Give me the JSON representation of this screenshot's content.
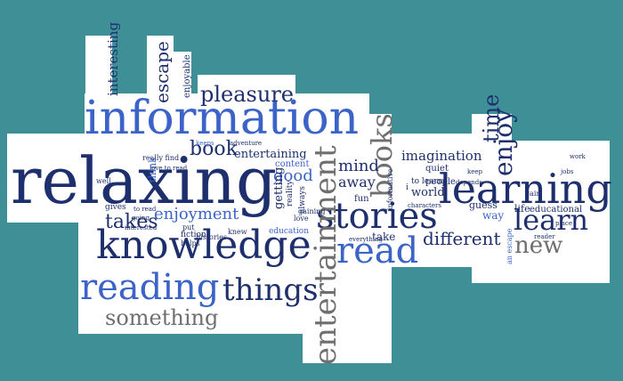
{
  "colors": {
    "background": "#3f8f97",
    "cloud": "#ffffff",
    "navy": "#1e2f6e",
    "blue": "#3c64c8",
    "light_blue": "#5a86dc",
    "gray": "#6f6f6f",
    "dark_gray": "#444444"
  },
  "words": [
    {
      "text": "relaxing",
      "color": "navy"
    },
    {
      "text": "information",
      "color": "blue"
    },
    {
      "text": "knowledge",
      "color": "navy"
    },
    {
      "text": "learning",
      "color": "navy"
    },
    {
      "text": "stories",
      "color": "navy"
    },
    {
      "text": "entertainment",
      "color": "gray"
    },
    {
      "text": "reading",
      "color": "blue"
    },
    {
      "text": "read",
      "color": "blue"
    },
    {
      "text": "things",
      "color": "navy"
    },
    {
      "text": "something",
      "color": "gray"
    },
    {
      "text": "books",
      "color": "gray"
    },
    {
      "text": "pleasure",
      "color": "navy"
    },
    {
      "text": "different",
      "color": "navy"
    },
    {
      "text": "learn",
      "color": "navy"
    },
    {
      "text": "new",
      "color": "gray"
    },
    {
      "text": "enjoy",
      "color": "navy"
    },
    {
      "text": "time",
      "color": "navy"
    },
    {
      "text": "book",
      "color": "navy"
    },
    {
      "text": "takes",
      "color": "navy"
    },
    {
      "text": "escape",
      "color": "navy"
    },
    {
      "text": "interesting",
      "color": "navy"
    },
    {
      "text": "enjoyment",
      "color": "blue"
    },
    {
      "text": "good",
      "color": "blue"
    },
    {
      "text": "mind",
      "color": "navy"
    },
    {
      "text": "away",
      "color": "navy"
    },
    {
      "text": "imagination",
      "color": "navy"
    },
    {
      "text": "entertaining",
      "color": "navy"
    },
    {
      "text": "getting",
      "color": "navy"
    },
    {
      "text": "enjoyable",
      "color": "navy"
    },
    {
      "text": "world",
      "color": "navy"
    },
    {
      "text": "quiet",
      "color": "navy"
    },
    {
      "text": "guess",
      "color": "navy"
    },
    {
      "text": "way",
      "color": "blue"
    },
    {
      "text": "life",
      "color": "navy"
    },
    {
      "text": "educational",
      "color": "navy"
    },
    {
      "text": "people",
      "color": "navy"
    },
    {
      "text": "take",
      "color": "navy"
    },
    {
      "text": "think",
      "color": "blue"
    },
    {
      "text": "fun",
      "color": "navy"
    },
    {
      "text": "reality",
      "color": "navy"
    },
    {
      "text": "always",
      "color": "navy"
    },
    {
      "text": "content",
      "color": "blue"
    },
    {
      "text": "education",
      "color": "blue"
    },
    {
      "text": "fiction",
      "color": "navy"
    },
    {
      "text": "histories",
      "color": "navy"
    },
    {
      "text": "helps",
      "color": "navy"
    },
    {
      "text": "gives",
      "color": "navy"
    },
    {
      "text": "knew",
      "color": "navy"
    },
    {
      "text": "really find",
      "color": "navy"
    },
    {
      "text": "put",
      "color": "navy"
    },
    {
      "text": "keeps",
      "color": "blue"
    },
    {
      "text": "adventure",
      "color": "navy"
    },
    {
      "text": "love",
      "color": "navy"
    },
    {
      "text": "gaining",
      "color": "navy"
    },
    {
      "text": "depends",
      "color": "navy"
    },
    {
      "text": "to learn",
      "color": "navy"
    },
    {
      "text": "i",
      "color": "navy"
    },
    {
      "text": "everything",
      "color": "navy"
    },
    {
      "text": "gain",
      "color": "navy"
    },
    {
      "text": "place",
      "color": "navy"
    },
    {
      "text": "an escape",
      "color": "blue"
    },
    {
      "text": "well",
      "color": "navy"
    },
    {
      "text": "going",
      "color": "navy"
    },
    {
      "text": "work",
      "color": "navy"
    },
    {
      "text": "to read",
      "color": "navy"
    },
    {
      "text": "interested",
      "color": "navy"
    },
    {
      "text": "love to read",
      "color": "navy"
    },
    {
      "text": "informative",
      "color": "navy"
    },
    {
      "text": "characters",
      "color": "navy"
    },
    {
      "text": "keep",
      "color": "navy"
    },
    {
      "text": "reader",
      "color": "navy"
    },
    {
      "text": "jobs",
      "color": "navy"
    }
  ]
}
